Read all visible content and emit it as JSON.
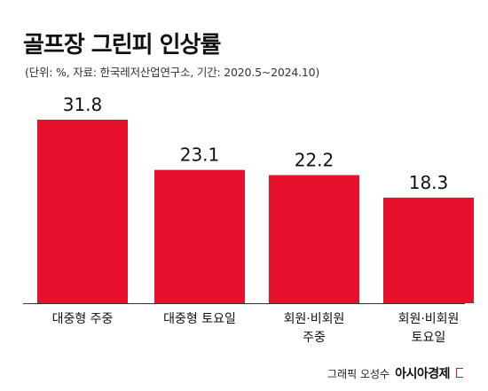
{
  "title": "골프장 그린피 인상률",
  "subtitle": "(단위: %, 자료: 한국레저산업연구소, 기간: 2020.5~2024.10)",
  "footer": {
    "credit": "그래픽 오성수",
    "brand": "아시아경제"
  },
  "colors": {
    "bar": "#e8112d",
    "axis": "#333333",
    "text": "#111111"
  },
  "chart_data": {
    "type": "bar",
    "title": "골프장 그린피 인상률",
    "xlabel": "",
    "ylabel": "",
    "categories": [
      [
        "대중형 주중"
      ],
      [
        "대중형 토요일"
      ],
      [
        "회원·비회원",
        "주중"
      ],
      [
        "회원·비회원",
        "토요일"
      ]
    ],
    "values": [
      31.8,
      23.1,
      22.2,
      18.3
    ],
    "value_labels": [
      "31.8",
      "23.1",
      "22.2",
      "18.3"
    ],
    "ylim": [
      0,
      31.8
    ],
    "grid": false,
    "legend": "none"
  }
}
